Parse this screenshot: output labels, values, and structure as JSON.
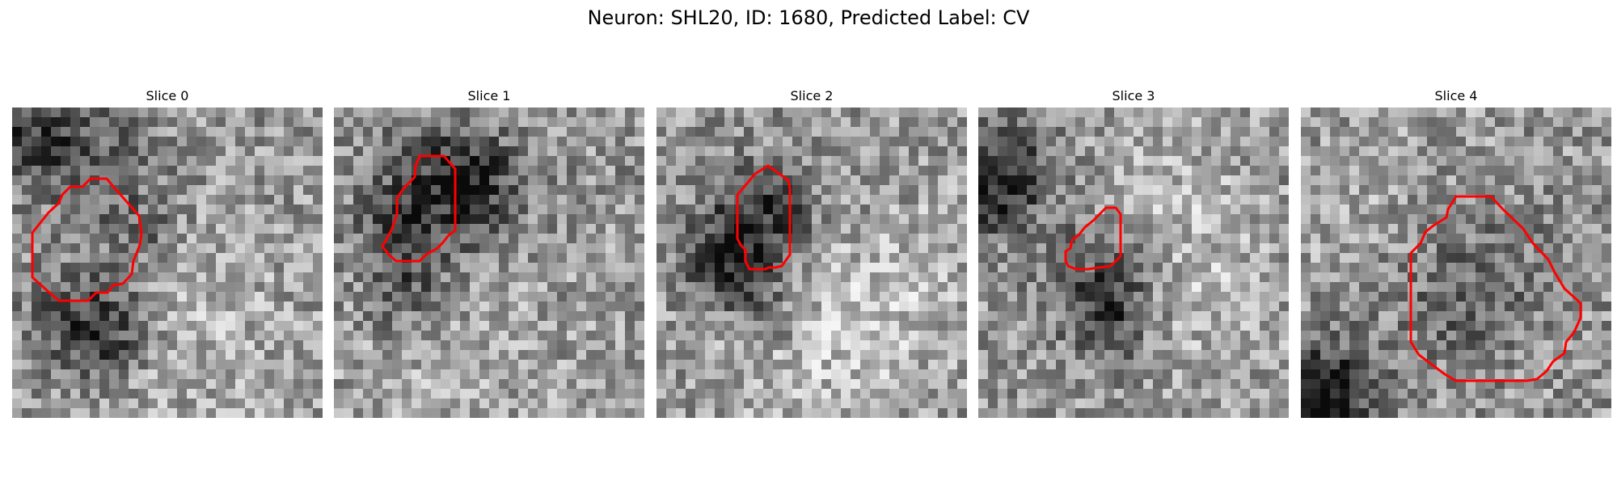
{
  "figure": {
    "title": "Neuron: SHL20, ID: 1680, Predicted Label: CV"
  },
  "panels": [
    {
      "title": "Slice 0"
    },
    {
      "title": "Slice 1"
    },
    {
      "title": "Slice 2"
    },
    {
      "title": "Slice 3"
    },
    {
      "title": "Slice 4"
    }
  ],
  "image": {
    "grid": 32,
    "colormap": "gray"
  },
  "colors": {
    "contour": "#ff0000"
  }
}
